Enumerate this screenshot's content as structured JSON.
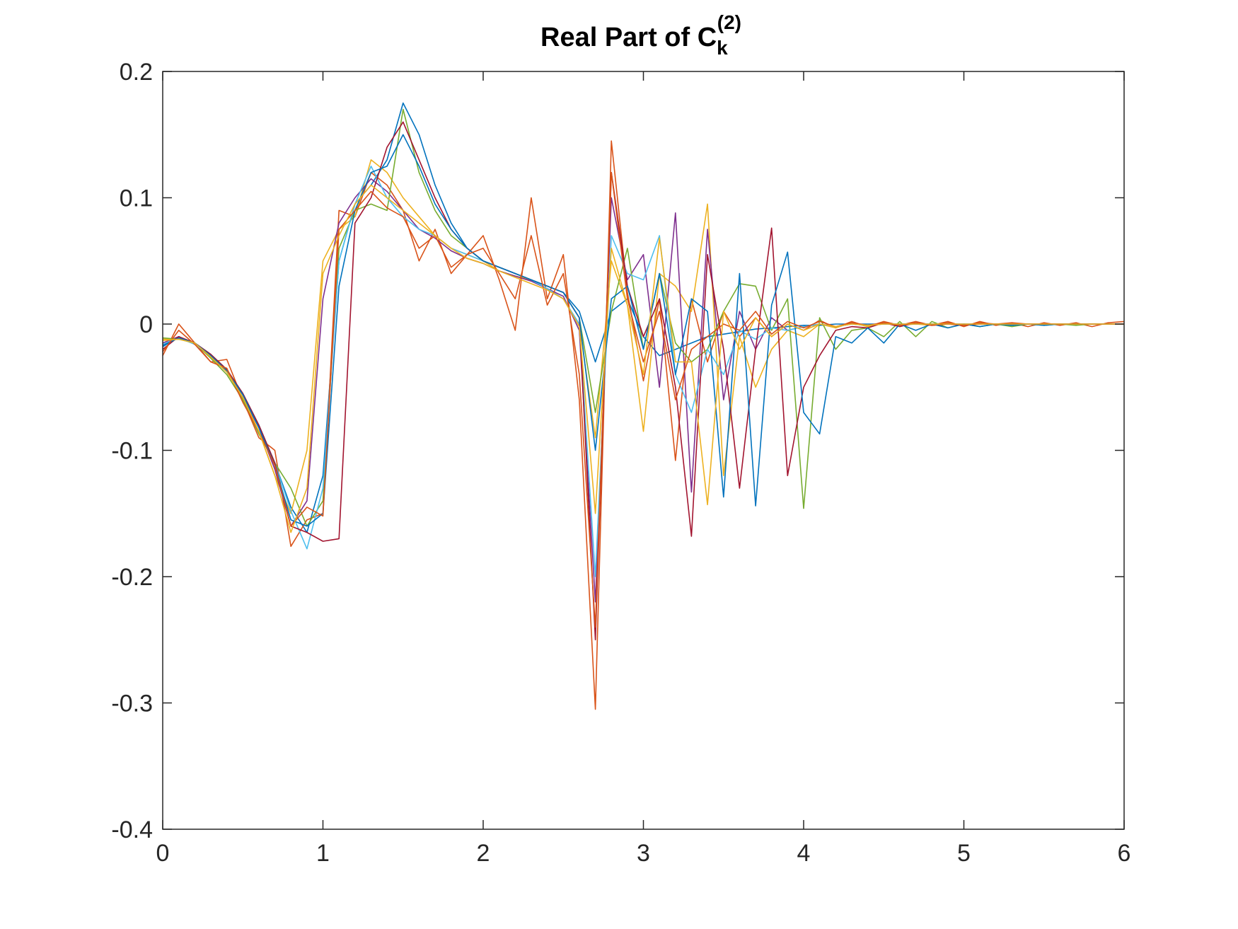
{
  "chart_data": {
    "type": "line",
    "title": {
      "main": "Real Part of C",
      "subscript": "k",
      "superscript": "(2)"
    },
    "xlabel": "",
    "ylabel": "",
    "xlim": [
      0,
      6
    ],
    "ylim": [
      -0.4,
      0.2
    ],
    "x_ticks": [
      0,
      1,
      2,
      3,
      4,
      5,
      6
    ],
    "x_tick_labels": [
      "0",
      "1",
      "2",
      "3",
      "4",
      "5",
      "6"
    ],
    "y_ticks": [
      0.2,
      0.1,
      0,
      -0.1,
      -0.2,
      -0.3,
      -0.4
    ],
    "y_tick_labels": [
      "0.2",
      "0.1",
      "0",
      "-0.1",
      "-0.2",
      "-0.3",
      "-0.4"
    ],
    "grid": false,
    "legend": "none",
    "palette": [
      "#0072BD",
      "#D95319",
      "#EDB120",
      "#7E2F8E",
      "#77AC30",
      "#4DBEEE",
      "#A2142F"
    ],
    "x": [
      0,
      0.1,
      0.2,
      0.3,
      0.4,
      0.5,
      0.6,
      0.7,
      0.8,
      0.9,
      1.0,
      1.1,
      1.2,
      1.3,
      1.4,
      1.5,
      1.6,
      1.7,
      1.8,
      1.9,
      2.0,
      2.1,
      2.2,
      2.3,
      2.4,
      2.5,
      2.6,
      2.7,
      2.8,
      2.9,
      3.0,
      3.1,
      3.2,
      3.3,
      3.4,
      3.5,
      3.6,
      3.7,
      3.8,
      3.9,
      4.0,
      4.1,
      4.2,
      4.3,
      4.4,
      4.5,
      4.6,
      4.7,
      4.8,
      4.9,
      5.0,
      5.1,
      5.2,
      5.3,
      5.4,
      5.5,
      5.6,
      5.7,
      5.8,
      5.9,
      6.0
    ],
    "series": [
      {
        "values": [
          -0.018,
          -0.01,
          -0.015,
          -0.024,
          -0.036,
          -0.055,
          -0.08,
          -0.11,
          -0.145,
          -0.165,
          -0.12,
          0.05,
          0.095,
          0.11,
          0.13,
          0.175,
          0.15,
          0.11,
          0.08,
          0.06,
          0.05,
          0.045,
          0.04,
          0.035,
          0.03,
          0.025,
          0.01,
          -0.03,
          0.01,
          0.02,
          -0.01,
          -0.025,
          -0.02,
          -0.015,
          -0.01,
          -0.008,
          -0.006,
          -0.004,
          -0.003,
          -0.002,
          -0.001,
          -0.001,
          0,
          0,
          0,
          0,
          0,
          0,
          0,
          0,
          0,
          0,
          0,
          0,
          0,
          0,
          0,
          0,
          0,
          0,
          0
        ]
      },
      {
        "values": [
          -0.025,
          0,
          -0.015,
          -0.03,
          -0.028,
          -0.06,
          -0.09,
          -0.1,
          -0.176,
          -0.155,
          -0.15,
          0.09,
          0.085,
          0.12,
          0.11,
          0.09,
          0.05,
          0.075,
          0.04,
          0.055,
          0.07,
          0.035,
          -0.005,
          0.1,
          0.02,
          0.055,
          -0.06,
          -0.305,
          0.145,
          0.025,
          -0.045,
          0.02,
          -0.108,
          0.02,
          -0.03,
          0.01,
          -0.01,
          0.005,
          -0.01,
          0,
          -0.005,
          0.003,
          -0.003,
          0.002,
          -0.002,
          0.002,
          -0.001,
          0.002,
          -0.001,
          0.002,
          -0.002,
          0.002,
          -0.001,
          0.001,
          -0.002,
          0.001,
          -0.001,
          0.001,
          -0.002,
          0.001,
          0.002
        ]
      },
      {
        "values": [
          -0.012,
          -0.012,
          -0.015,
          -0.025,
          -0.037,
          -0.06,
          -0.085,
          -0.12,
          -0.15,
          -0.1,
          0.05,
          0.075,
          0.085,
          0.13,
          0.12,
          0.1,
          0.085,
          0.07,
          0.06,
          0.055,
          0.05,
          0.042,
          0.038,
          0.035,
          0.028,
          0.02,
          0,
          -0.09,
          0.05,
          0.015,
          -0.085,
          0.04,
          0.03,
          0.01,
          0.095,
          -0.12,
          -0.01,
          -0.05,
          -0.02,
          -0.005,
          -0.01,
          0,
          -0.003,
          0.001,
          -0.002,
          0.001,
          -0.001,
          0,
          -0.001,
          0,
          -0.001,
          0,
          0,
          0,
          0,
          0,
          0,
          0,
          0,
          0,
          0
        ]
      },
      {
        "values": [
          -0.015,
          -0.01,
          -0.016,
          -0.026,
          -0.038,
          -0.058,
          -0.082,
          -0.115,
          -0.16,
          -0.14,
          0.02,
          0.08,
          0.1,
          0.115,
          0.105,
          0.09,
          0.075,
          0.068,
          0.058,
          0.052,
          0.048,
          0.042,
          0.038,
          0.034,
          0.028,
          0.022,
          -0.005,
          -0.22,
          0.1,
          0.035,
          0.055,
          -0.05,
          0.088,
          -0.133,
          0.075,
          -0.06,
          0.01,
          -0.02,
          0.005,
          -0.005,
          -0.002,
          0,
          -0.002,
          0,
          -0.001,
          0,
          0,
          0,
          0,
          0,
          0,
          0,
          0,
          0,
          0,
          0,
          0,
          0,
          0,
          0,
          0
        ]
      },
      {
        "values": [
          -0.011,
          -0.012,
          -0.015,
          -0.027,
          -0.04,
          -0.06,
          -0.087,
          -0.11,
          -0.13,
          -0.16,
          -0.14,
          0.06,
          0.09,
          0.095,
          0.09,
          0.17,
          0.12,
          0.09,
          0.07,
          0.06,
          0.05,
          0.045,
          0.04,
          0.035,
          0.03,
          0.025,
          0.005,
          -0.07,
          0.01,
          0.06,
          -0.02,
          0.04,
          -0.015,
          -0.03,
          -0.02,
          0.01,
          0.032,
          0.03,
          -0.005,
          0.02,
          -0.146,
          0.005,
          -0.02,
          -0.005,
          -0.003,
          -0.01,
          0.002,
          -0.01,
          0.002,
          -0.003,
          0,
          -0.002,
          0,
          -0.002,
          0,
          -0.001,
          0,
          -0.001,
          0,
          0,
          0
        ]
      },
      {
        "values": [
          -0.016,
          -0.011,
          -0.016,
          -0.025,
          -0.036,
          -0.056,
          -0.08,
          -0.11,
          -0.148,
          -0.178,
          -0.13,
          0.05,
          0.095,
          0.125,
          0.1,
          0.085,
          0.075,
          0.07,
          0.06,
          0.055,
          0.05,
          0.045,
          0.04,
          0.035,
          0.028,
          0.02,
          0,
          -0.2,
          0.07,
          0.04,
          0.035,
          0.07,
          -0.04,
          -0.07,
          -0.02,
          -0.04,
          -0.005,
          -0.012,
          -0.003,
          -0.005,
          -0.002,
          0,
          -0.002,
          0,
          -0.001,
          0,
          0,
          0,
          0,
          0,
          0,
          0,
          0,
          0,
          0,
          0,
          0,
          0,
          0,
          0,
          0
        ]
      },
      {
        "values": [
          -0.02,
          -0.01,
          -0.015,
          -0.024,
          -0.036,
          -0.055,
          -0.08,
          -0.11,
          -0.16,
          -0.165,
          -0.172,
          -0.17,
          0.08,
          0.1,
          0.14,
          0.16,
          0.13,
          0.1,
          0.075,
          0.06,
          0.05,
          0.045,
          0.04,
          0.035,
          0.03,
          0.025,
          0.005,
          -0.25,
          0.12,
          0.03,
          -0.01,
          0.02,
          -0.05,
          -0.168,
          0.055,
          -0.02,
          -0.13,
          -0.02,
          0.076,
          -0.12,
          -0.05,
          -0.025,
          -0.005,
          -0.002,
          -0.003,
          0.001,
          -0.002,
          0.001,
          -0.001,
          0,
          -0.001,
          0,
          0,
          0,
          0,
          0,
          0,
          0,
          0,
          0,
          0
        ]
      },
      {
        "values": [
          -0.017,
          -0.011,
          -0.015,
          -0.025,
          -0.037,
          -0.056,
          -0.082,
          -0.112,
          -0.155,
          -0.16,
          -0.15,
          0.03,
          0.09,
          0.12,
          0.125,
          0.15,
          0.125,
          0.095,
          0.075,
          0.06,
          0.05,
          0.045,
          0.04,
          0.035,
          0.03,
          0.025,
          0.005,
          -0.1,
          0.02,
          0.03,
          -0.02,
          0.04,
          -0.04,
          0.02,
          0.01,
          -0.137,
          0.04,
          -0.144,
          0.015,
          0.057,
          -0.07,
          -0.087,
          -0.01,
          -0.015,
          -0.003,
          -0.015,
          0,
          -0.005,
          0,
          -0.003,
          0,
          -0.002,
          0,
          -0.001,
          0,
          -0.001,
          0,
          0,
          0,
          0,
          0
        ]
      },
      {
        "values": [
          -0.022,
          -0.005,
          -0.016,
          -0.03,
          -0.035,
          -0.062,
          -0.085,
          -0.112,
          -0.16,
          -0.145,
          -0.152,
          0.075,
          0.09,
          0.105,
          0.092,
          0.085,
          0.06,
          0.07,
          0.045,
          0.055,
          0.06,
          0.04,
          0.02,
          0.07,
          0.015,
          0.04,
          -0.04,
          -0.24,
          0.12,
          0.02,
          -0.03,
          0.01,
          -0.06,
          -0.02,
          -0.01,
          0,
          -0.005,
          0.01,
          -0.008,
          0.002,
          -0.003,
          0.002,
          -0.002,
          0.001,
          -0.001,
          0.001,
          -0.001,
          0.001,
          -0.001,
          0.001,
          -0.001,
          0.001,
          0,
          0.001,
          0,
          0,
          0,
          0,
          0,
          0,
          0
        ]
      },
      {
        "values": [
          -0.013,
          -0.012,
          -0.015,
          -0.026,
          -0.038,
          -0.058,
          -0.085,
          -0.12,
          -0.165,
          -0.13,
          0.04,
          0.07,
          0.095,
          0.11,
          0.1,
          0.09,
          0.08,
          0.07,
          0.06,
          0.052,
          0.048,
          0.042,
          0.037,
          0.032,
          0.027,
          0.02,
          -0.002,
          -0.15,
          0.06,
          0.015,
          -0.04,
          0.068,
          -0.03,
          -0.03,
          -0.143,
          0.01,
          -0.02,
          0.005,
          -0.01,
          0,
          -0.005,
          0,
          -0.002,
          0,
          -0.001,
          0,
          0,
          0,
          0,
          0,
          0,
          0,
          0,
          0,
          0,
          0,
          0,
          0,
          0,
          0,
          0
        ]
      }
    ]
  }
}
